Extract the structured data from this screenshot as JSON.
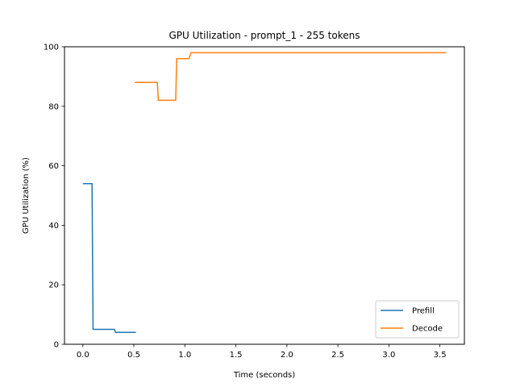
{
  "chart_data": {
    "type": "line",
    "title": "GPU Utilization - prompt_1 - 255 tokens",
    "xlabel": "Time (seconds)",
    "ylabel": "GPU Utilization (%)",
    "xlim": [
      -0.18,
      3.74
    ],
    "ylim": [
      0,
      100
    ],
    "xticks": [
      0.0,
      0.5,
      1.0,
      1.5,
      2.0,
      2.5,
      3.0,
      3.5
    ],
    "xtick_labels": [
      "0.0",
      "0.5",
      "1.0",
      "1.5",
      "2.0",
      "2.5",
      "3.0",
      "3.5"
    ],
    "yticks": [
      0,
      20,
      40,
      60,
      80,
      100
    ],
    "ytick_labels": [
      "0",
      "20",
      "40",
      "60",
      "80",
      "100"
    ],
    "grid": false,
    "legend_position": "lower-right",
    "series": [
      {
        "name": "Prefill",
        "color": "#1f77b4",
        "x": [
          0.0,
          0.09,
          0.1,
          0.31,
          0.32,
          0.52
        ],
        "y": [
          54,
          54,
          5,
          5,
          4,
          4
        ]
      },
      {
        "name": "Decode",
        "color": "#ff7f0e",
        "x": [
          0.51,
          0.73,
          0.74,
          0.91,
          0.92,
          1.04,
          1.06,
          3.56
        ],
        "y": [
          88,
          88,
          82,
          82,
          96,
          96,
          98,
          98
        ]
      }
    ]
  }
}
